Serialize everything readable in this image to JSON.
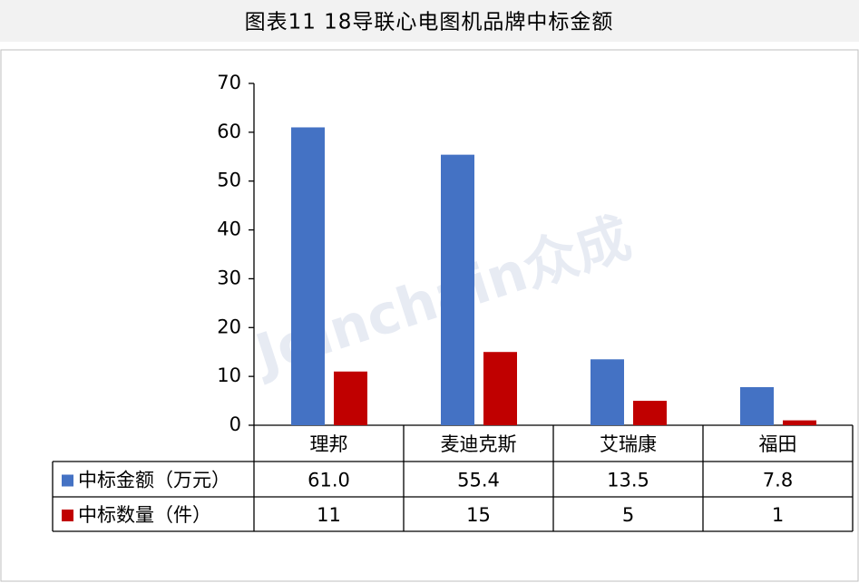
{
  "chart_data": {
    "type": "bar",
    "title": "图表11  18导联心电图机品牌中标金额",
    "watermark": "Joinchain众成",
    "categories": [
      "理邦",
      "麦迪克斯",
      "艾瑞康",
      "福田"
    ],
    "series": [
      {
        "name": "中标金额（万元）",
        "color": "#4472c4",
        "values": [
          61.0,
          55.4,
          13.5,
          7.8
        ],
        "value_labels": [
          "61.0",
          "55.4",
          "13.5",
          "7.8"
        ]
      },
      {
        "name": "中标数量（件）",
        "color": "#c00000",
        "values": [
          11,
          15,
          5,
          1
        ]
      }
    ],
    "ylim": [
      0,
      70
    ],
    "yticks": [
      0,
      10,
      20,
      30,
      40,
      50,
      60,
      70
    ],
    "grid": false
  }
}
